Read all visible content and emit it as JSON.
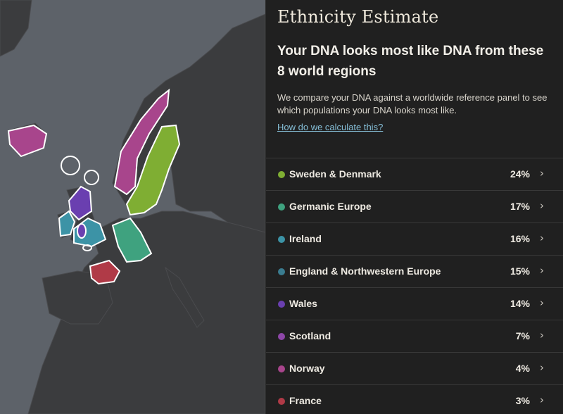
{
  "panel": {
    "title": "Ethnicity Estimate",
    "headline": "Your DNA looks most like DNA from these 8 world regions",
    "description": "We compare your DNA against a worldwide reference panel to see which populations your DNA looks most like.",
    "link_text": "How do we calculate this?",
    "chevron_icon": "chevron-right-icon"
  },
  "regions": [
    {
      "name": "Sweden & Denmark",
      "percent": "24%",
      "color": "#7fae33"
    },
    {
      "name": "Germanic Europe",
      "percent": "17%",
      "color": "#3fa27f"
    },
    {
      "name": "Ireland",
      "percent": "16%",
      "color": "#3c93a6"
    },
    {
      "name": "England & Northwestern Europe",
      "percent": "15%",
      "color": "#3a7c90"
    },
    {
      "name": "Wales",
      "percent": "14%",
      "color": "#6a3fb0"
    },
    {
      "name": "Scotland",
      "percent": "7%",
      "color": "#8e47a8"
    },
    {
      "name": "Norway",
      "percent": "4%",
      "color": "#a8458c"
    },
    {
      "name": "France",
      "percent": "3%",
      "color": "#b03a47"
    }
  ],
  "map": {
    "sea_color": "#5d6269",
    "land_color": "#3b3b3d"
  }
}
